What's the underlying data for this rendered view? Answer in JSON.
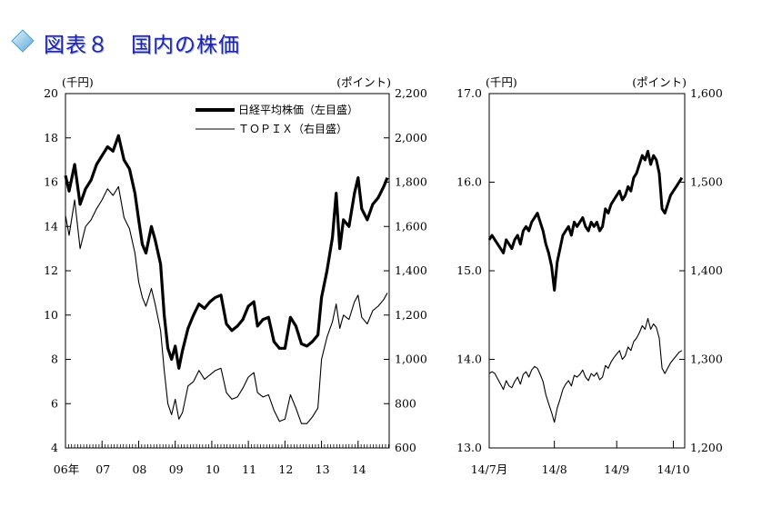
{
  "page": {
    "title": "図表８　国内の株価"
  },
  "colors": {
    "title": "#2222aa",
    "title_icon": "#8fc8e8",
    "line": "#000000"
  },
  "icons": {
    "title_bullet": "diamond-icon"
  },
  "chart_data": [
    {
      "type": "line",
      "y_unit_left": "(千円)",
      "y_unit_right": "(ポイント)",
      "ylim_left": [
        4,
        20
      ],
      "yticks_left": [
        "4",
        "6",
        "8",
        "10",
        "12",
        "14",
        "16",
        "18",
        "20"
      ],
      "ylim_right": [
        600,
        2200
      ],
      "yticks_right": [
        "600",
        "800",
        "1,000",
        "1,200",
        "1,400",
        "1,600",
        "1,800",
        "2,000",
        "2,200"
      ],
      "xlim": [
        2006,
        2014.85
      ],
      "x_tick_labels": [
        "06年",
        "07",
        "08",
        "09",
        "10",
        "11",
        "12",
        "13",
        "14"
      ],
      "x_tick_positions": [
        2006,
        2007,
        2008,
        2009,
        2010,
        2011,
        2012,
        2013,
        2014
      ],
      "legend": [
        "日経平均株価（左目盛）",
        "ＴＯＰＩＸ（右目盛）"
      ],
      "series": [
        {
          "name": "日経平均株価（左目盛）",
          "axis": "left",
          "x": [
            2006.0,
            2006.1,
            2006.25,
            2006.4,
            2006.55,
            2006.7,
            2006.85,
            2007.0,
            2007.15,
            2007.3,
            2007.45,
            2007.6,
            2007.75,
            2007.9,
            2008.0,
            2008.1,
            2008.2,
            2008.35,
            2008.45,
            2008.6,
            2008.7,
            2008.8,
            2008.9,
            2009.0,
            2009.1,
            2009.2,
            2009.35,
            2009.5,
            2009.65,
            2009.8,
            2009.95,
            2010.1,
            2010.25,
            2010.4,
            2010.55,
            2010.7,
            2010.85,
            2011.0,
            2011.15,
            2011.25,
            2011.4,
            2011.55,
            2011.7,
            2011.85,
            2012.0,
            2012.15,
            2012.3,
            2012.45,
            2012.6,
            2012.75,
            2012.9,
            2013.0,
            2013.15,
            2013.3,
            2013.4,
            2013.5,
            2013.6,
            2013.75,
            2013.9,
            2014.0,
            2014.1,
            2014.25,
            2014.4,
            2014.55,
            2014.7,
            2014.8
          ],
          "values": [
            16.3,
            15.6,
            16.8,
            15.0,
            15.7,
            16.1,
            16.8,
            17.2,
            17.6,
            17.4,
            18.1,
            17.0,
            16.6,
            15.5,
            14.3,
            13.2,
            12.8,
            14.0,
            13.4,
            12.3,
            10.0,
            8.5,
            8.0,
            8.6,
            7.6,
            8.4,
            9.4,
            10.0,
            10.5,
            10.3,
            10.6,
            10.8,
            10.9,
            9.6,
            9.3,
            9.5,
            9.8,
            10.4,
            10.6,
            9.5,
            9.8,
            9.9,
            8.8,
            8.5,
            8.5,
            9.9,
            9.5,
            8.7,
            8.6,
            8.8,
            9.1,
            10.8,
            12.0,
            13.5,
            15.5,
            13.0,
            14.3,
            14.0,
            15.5,
            16.2,
            14.8,
            14.3,
            15.0,
            15.3,
            15.8,
            16.2
          ]
        },
        {
          "name": "ＴＯＰＩＸ（右目盛）",
          "axis": "right",
          "x": [
            2006.0,
            2006.1,
            2006.25,
            2006.4,
            2006.55,
            2006.7,
            2006.85,
            2007.0,
            2007.15,
            2007.3,
            2007.45,
            2007.6,
            2007.75,
            2007.9,
            2008.0,
            2008.1,
            2008.2,
            2008.35,
            2008.45,
            2008.6,
            2008.7,
            2008.8,
            2008.9,
            2009.0,
            2009.1,
            2009.2,
            2009.35,
            2009.5,
            2009.65,
            2009.8,
            2009.95,
            2010.1,
            2010.25,
            2010.4,
            2010.55,
            2010.7,
            2010.85,
            2011.0,
            2011.15,
            2011.25,
            2011.4,
            2011.55,
            2011.7,
            2011.85,
            2012.0,
            2012.15,
            2012.3,
            2012.45,
            2012.6,
            2012.75,
            2012.9,
            2013.0,
            2013.15,
            2013.3,
            2013.4,
            2013.5,
            2013.6,
            2013.75,
            2013.9,
            2014.0,
            2014.1,
            2014.25,
            2014.4,
            2014.55,
            2014.7,
            2014.8
          ],
          "values": [
            1650,
            1560,
            1720,
            1500,
            1600,
            1630,
            1680,
            1720,
            1770,
            1740,
            1780,
            1640,
            1590,
            1480,
            1350,
            1280,
            1240,
            1320,
            1250,
            1130,
            950,
            800,
            750,
            820,
            730,
            760,
            880,
            900,
            950,
            910,
            930,
            950,
            960,
            850,
            820,
            830,
            870,
            920,
            940,
            850,
            830,
            840,
            770,
            720,
            730,
            840,
            780,
            710,
            710,
            740,
            780,
            1000,
            1100,
            1170,
            1250,
            1140,
            1200,
            1180,
            1260,
            1290,
            1190,
            1160,
            1220,
            1240,
            1270,
            1300
          ]
        }
      ]
    },
    {
      "type": "line",
      "y_unit_left": "(千円)",
      "y_unit_right": "(ポイント)",
      "ylim_left": [
        13.0,
        17.0
      ],
      "yticks_left": [
        "13.0",
        "14.0",
        "15.0",
        "16.0",
        "17.0"
      ],
      "ylim_right": [
        1200,
        1600
      ],
      "yticks_right": [
        "1,200",
        "1,300",
        "1,400",
        "1,500",
        "1,600"
      ],
      "xlim": [
        0,
        69
      ],
      "x_tick_labels": [
        "14/7月",
        "14/8",
        "14/9",
        "14/10"
      ],
      "x_tick_positions": [
        0,
        23,
        45,
        65
      ],
      "series": [
        {
          "name": "日経平均株価（左目盛）",
          "axis": "left",
          "x": [
            0,
            1,
            2,
            3,
            4,
            5,
            6,
            7,
            8,
            9,
            10,
            11,
            12,
            13,
            14,
            15,
            16,
            17,
            18,
            19,
            20,
            21,
            22,
            23,
            24,
            25,
            26,
            27,
            28,
            29,
            30,
            31,
            32,
            33,
            34,
            35,
            36,
            37,
            38,
            39,
            40,
            41,
            42,
            43,
            44,
            45,
            46,
            47,
            48,
            49,
            50,
            51,
            52,
            53,
            54,
            55,
            56,
            57,
            58,
            59,
            60,
            61,
            62,
            63,
            64,
            65,
            66,
            67,
            68
          ],
          "values": [
            15.35,
            15.4,
            15.35,
            15.3,
            15.25,
            15.2,
            15.35,
            15.3,
            15.25,
            15.35,
            15.4,
            15.3,
            15.45,
            15.5,
            15.45,
            15.55,
            15.6,
            15.65,
            15.55,
            15.45,
            15.3,
            15.2,
            15.05,
            14.78,
            15.1,
            15.25,
            15.4,
            15.45,
            15.5,
            15.4,
            15.55,
            15.5,
            15.55,
            15.6,
            15.5,
            15.45,
            15.55,
            15.5,
            15.55,
            15.45,
            15.5,
            15.7,
            15.65,
            15.75,
            15.8,
            15.85,
            15.9,
            15.8,
            15.85,
            15.95,
            15.9,
            16.05,
            16.1,
            16.2,
            16.3,
            16.25,
            16.35,
            16.2,
            16.3,
            16.25,
            16.1,
            15.7,
            15.65,
            15.75,
            15.85,
            15.9,
            15.95,
            16.0,
            16.05
          ]
        },
        {
          "name": "ＴＯＰＩＸ（右目盛）",
          "axis": "right",
          "x": [
            0,
            1,
            2,
            3,
            4,
            5,
            6,
            7,
            8,
            9,
            10,
            11,
            12,
            13,
            14,
            15,
            16,
            17,
            18,
            19,
            20,
            21,
            22,
            23,
            24,
            25,
            26,
            27,
            28,
            29,
            30,
            31,
            32,
            33,
            34,
            35,
            36,
            37,
            38,
            39,
            40,
            41,
            42,
            43,
            44,
            45,
            46,
            47,
            48,
            49,
            50,
            51,
            52,
            53,
            54,
            55,
            56,
            57,
            58,
            59,
            60,
            61,
            62,
            63,
            64,
            65,
            66,
            67,
            68
          ],
          "values": [
            1284,
            1286,
            1284,
            1278,
            1272,
            1266,
            1276,
            1270,
            1268,
            1275,
            1280,
            1272,
            1283,
            1286,
            1280,
            1288,
            1292,
            1290,
            1283,
            1275,
            1260,
            1250,
            1240,
            1229,
            1245,
            1255,
            1266,
            1272,
            1276,
            1270,
            1282,
            1280,
            1283,
            1288,
            1280,
            1276,
            1284,
            1281,
            1285,
            1277,
            1280,
            1293,
            1290,
            1297,
            1302,
            1306,
            1310,
            1300,
            1304,
            1314,
            1310,
            1320,
            1324,
            1330,
            1338,
            1334,
            1346,
            1334,
            1340,
            1336,
            1324,
            1290,
            1284,
            1290,
            1296,
            1300,
            1304,
            1308,
            1310
          ]
        }
      ]
    }
  ]
}
